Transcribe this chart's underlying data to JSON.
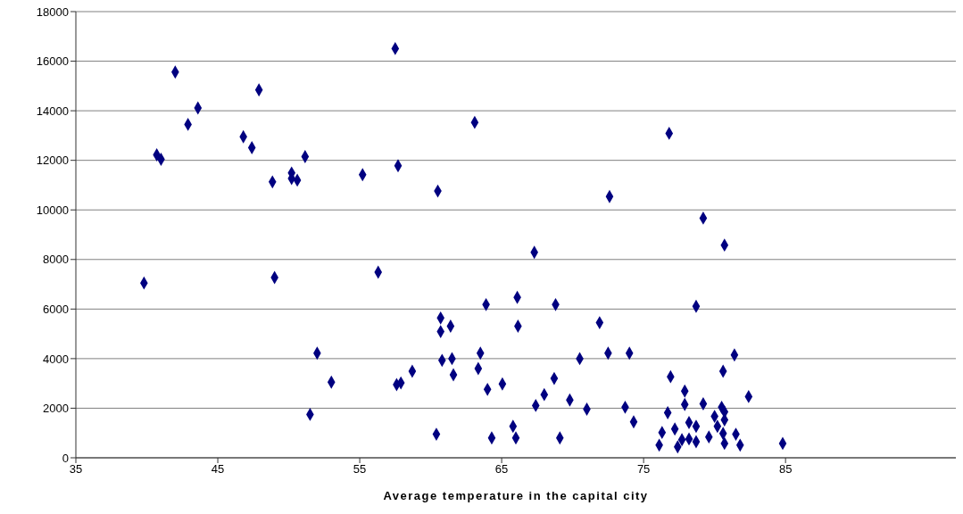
{
  "chart_data": {
    "type": "scatter",
    "xlabel": "Average temperature in the capital city",
    "x": [
      42.0,
      47.9,
      43.6,
      42.9,
      46.8,
      47.4,
      40.7,
      41.0,
      51.15,
      48.85,
      50.2,
      50.2,
      50.6,
      55.2,
      57.7,
      57.5,
      60.5,
      39.8,
      49.0,
      56.3,
      63.1,
      76.8,
      72.6,
      79.2,
      80.7,
      67.3,
      66.1,
      63.9,
      68.8,
      60.7,
      61.4,
      66.15,
      60.7,
      52.0,
      63.5,
      60.8,
      61.5,
      70.5,
      61.6,
      63.35,
      58.7,
      53.0,
      57.6,
      57.9,
      68.7,
      64.0,
      65.05,
      68.0,
      67.4,
      69.8,
      71.0,
      51.5,
      65.8,
      60.4,
      64.3,
      66.0,
      69.1,
      71.9,
      72.5,
      74.0,
      73.7,
      74.3,
      76.9,
      77.9,
      77.9,
      76.7,
      76.3,
      76.1,
      77.2,
      77.4,
      78.2,
      78.7,
      77.7,
      78.2,
      78.7,
      79.2,
      79.6,
      78.7,
      80.6,
      81.4,
      82.4,
      80.5,
      80.7,
      80.0,
      80.7,
      80.2,
      80.6,
      81.5,
      80.7,
      81.8,
      84.8
    ],
    "values": [
      15560,
      14840,
      14110,
      13450,
      12950,
      12510,
      12220,
      12040,
      12150,
      11130,
      11490,
      11270,
      11200,
      11420,
      11780,
      16510,
      10760,
      7050,
      7270,
      7490,
      13530,
      13090,
      10540,
      9670,
      8580,
      8290,
      6470,
      6180,
      6180,
      5640,
      5310,
      5310,
      5090,
      4220,
      4220,
      3930,
      4000,
      4000,
      3350,
      3600,
      3490,
      3050,
      2950,
      3020,
      3200,
      2760,
      2980,
      2550,
      2110,
      2330,
      1960,
      1750,
      1270,
      950,
      800,
      800,
      800,
      5450,
      4220,
      4220,
      2040,
      1450,
      3270,
      2690,
      2150,
      1820,
      1020,
      510,
      1160,
      440,
      1420,
      1270,
      730,
      760,
      650,
      2180,
      840,
      6110,
      3490,
      4150,
      2470,
      2040,
      1850,
      1670,
      1530,
      1270,
      980,
      950,
      580,
      510,
      580
    ],
    "color": "#000080",
    "marker": "diamond",
    "xlim": [
      35,
      97
    ],
    "xticks": [
      35,
      45,
      55,
      65,
      75,
      85
    ],
    "ylim": [
      0,
      18000
    ],
    "yticks": [
      0,
      2000,
      4000,
      6000,
      8000,
      10000,
      12000,
      14000,
      16000,
      18000
    ],
    "grid": "y"
  }
}
